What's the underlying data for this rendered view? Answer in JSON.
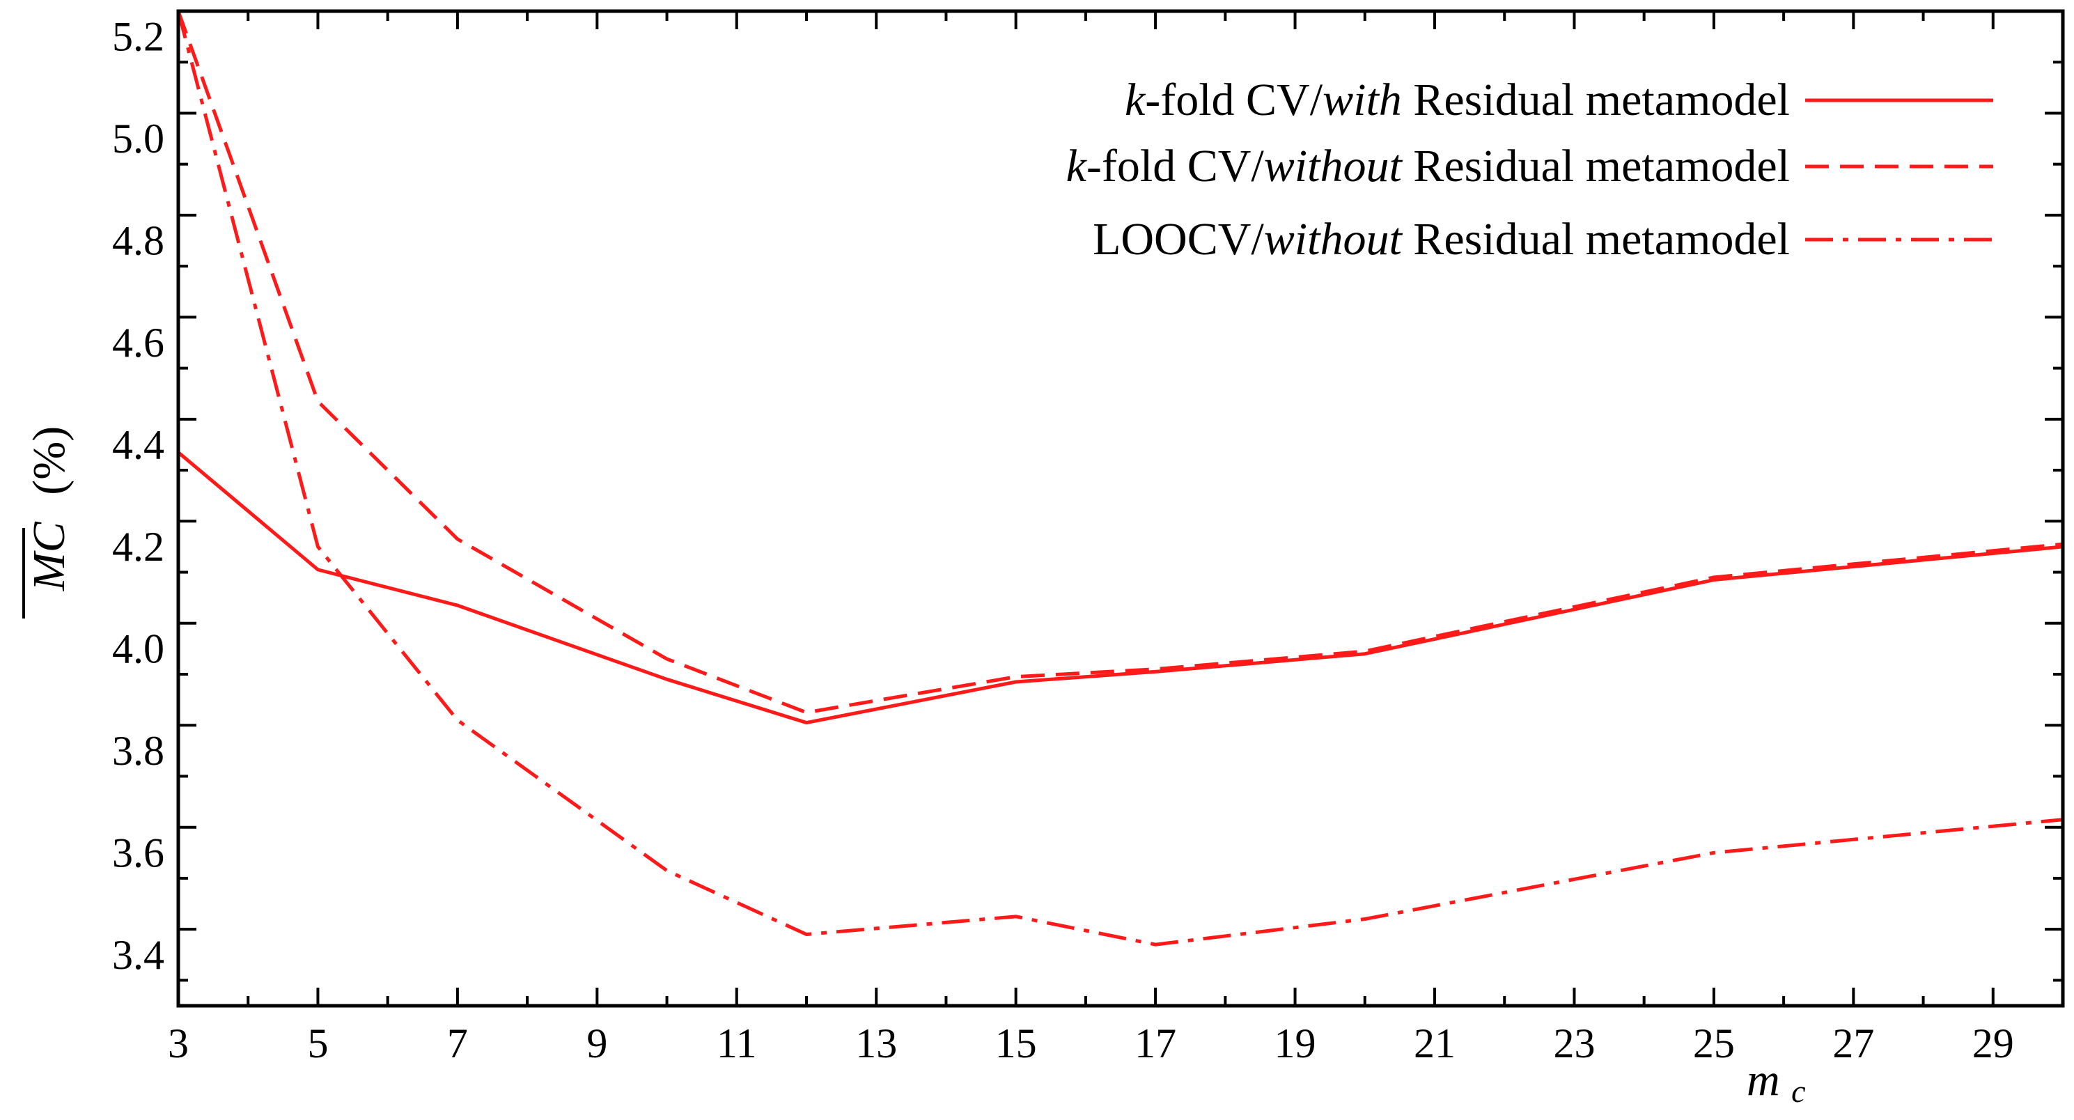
{
  "chart_data": {
    "type": "line",
    "title": "",
    "xlabel": "m",
    "xlabel_subscript": "c",
    "ylabel": "MC",
    "ylabel_unit": "(%)",
    "xlim": [
      3,
      30
    ],
    "ylim": [
      3.3,
      5.25
    ],
    "x_ticks": [
      "3",
      "5",
      "7",
      "9",
      "11",
      "13",
      "15",
      "17",
      "19",
      "21",
      "23",
      "25",
      "27",
      "29"
    ],
    "y_ticks": [
      "3.4",
      "3.6",
      "3.8",
      "4.0",
      "4.2",
      "4.4",
      "4.6",
      "4.8",
      "5.0",
      "5.2"
    ],
    "grid": false,
    "legend_position": "top-right",
    "color": "#ff1a1a",
    "series": [
      {
        "name": "k-fold CV/with Residual metamodel",
        "legend_parts": [
          {
            "text": "k",
            "italic": true
          },
          {
            "text": "-fold CV/",
            "italic": false
          },
          {
            "text": "with",
            "italic": true
          },
          {
            "text": " Residual metamodel",
            "italic": false
          }
        ],
        "style": "solid",
        "x": [
          3,
          5,
          7,
          10,
          12,
          15,
          17,
          20,
          25,
          30
        ],
        "y": [
          4.385,
          4.155,
          4.085,
          3.94,
          3.855,
          3.935,
          3.955,
          3.99,
          4.135,
          4.2
        ]
      },
      {
        "name": "k-fold CV/without Residual metamodel",
        "legend_parts": [
          {
            "text": "k",
            "italic": true
          },
          {
            "text": "-fold CV/",
            "italic": false
          },
          {
            "text": "without",
            "italic": true
          },
          {
            "text": " Residual metamodel",
            "italic": false
          }
        ],
        "style": "dashed",
        "x": [
          3,
          5,
          7,
          10,
          12,
          15,
          17,
          20,
          25,
          30
        ],
        "y": [
          5.25,
          4.485,
          4.215,
          3.98,
          3.875,
          3.945,
          3.96,
          3.995,
          4.14,
          4.205
        ]
      },
      {
        "name": "LOOCV/without Residual metamodel",
        "legend_parts": [
          {
            "text": "LOOCV/",
            "italic": false
          },
          {
            "text": "without",
            "italic": true
          },
          {
            "text": " Residual metamodel",
            "italic": false
          }
        ],
        "style": "dashdot",
        "x": [
          3,
          5,
          7,
          10,
          12,
          15,
          17,
          20,
          25,
          30
        ],
        "y": [
          5.25,
          4.2,
          3.86,
          3.565,
          3.44,
          3.475,
          3.42,
          3.47,
          3.6,
          3.665
        ]
      }
    ]
  }
}
